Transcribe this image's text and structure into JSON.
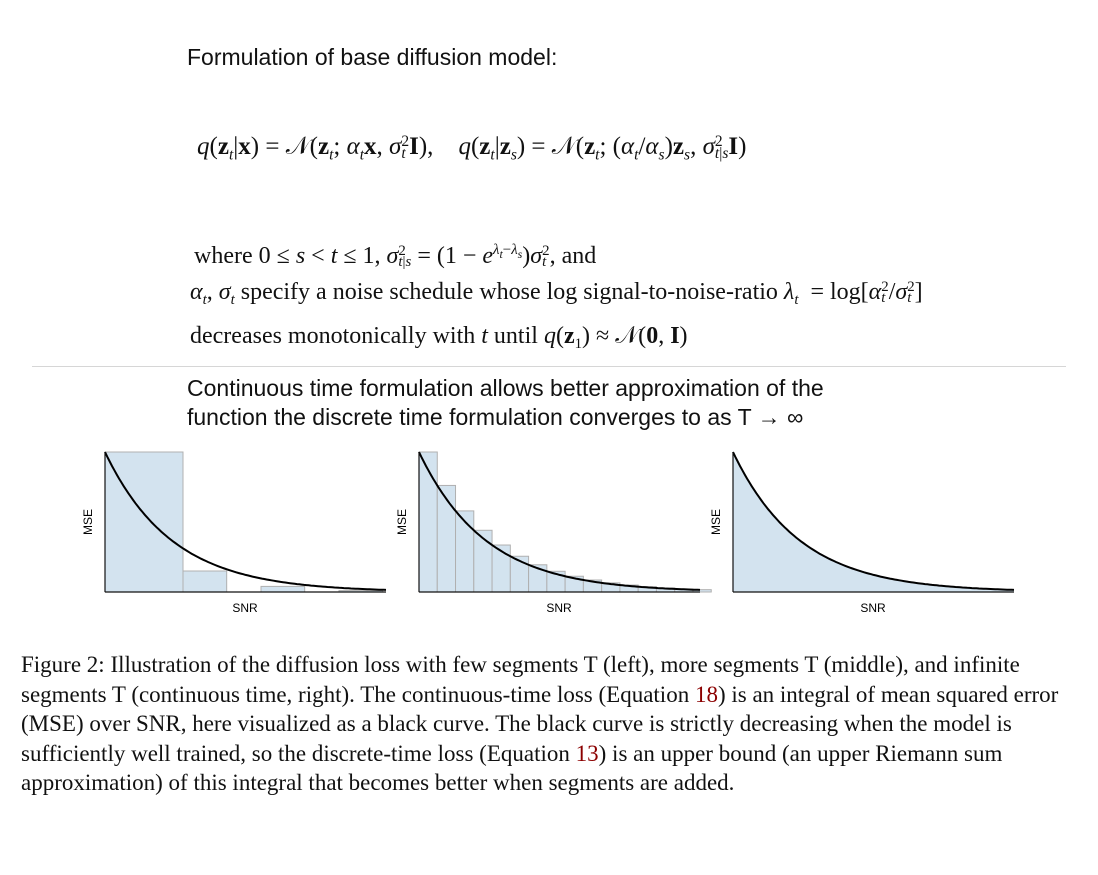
{
  "heading": "Formulation of base diffusion model:",
  "equation_main": {
    "left": "q(z_t|x) = N(z_t; α_t x, σ_t² I)",
    "right": "q(z_t|z_s) = N(z_t; (α_t/α_s) z_s, σ²_{t|s} I)"
  },
  "where_text": {
    "line1": "where 0 ≤ s < t ≤ 1, σ²_{t|s} = (1 − e^{λ_t−λ_s}) σ_t², and",
    "line2": "α_t, σ_t specify a noise schedule whose log signal-to-noise-ratio λ_t = log[α_t²/σ_t²]",
    "line3": "decreases monotonically with t until q(z_1) ≈ N(0, I)"
  },
  "continuous_text": {
    "line1": "Continuous time formulation allows better approximation of the",
    "line2": "function the discrete time formulation converges to as T → ∞"
  },
  "chart_data": [
    {
      "type": "area",
      "variant": "few segments",
      "xlabel": "SNR",
      "ylabel": "MSE",
      "curve": "exponential decay",
      "segments": 4,
      "bar_heights": [
        1.0,
        0.15,
        0.04,
        0.01
      ]
    },
    {
      "type": "area",
      "variant": "more segments",
      "xlabel": "SNR",
      "ylabel": "MSE",
      "curve": "exponential decay",
      "segments": 16
    },
    {
      "type": "area",
      "variant": "infinite segments",
      "xlabel": "SNR",
      "ylabel": "MSE",
      "curve": "exponential decay",
      "segments": null
    }
  ],
  "caption": {
    "text_a": "Figure 2: Illustration of the diffusion loss with few segments T (left), more segments T (middle), and infinite segments T (continuous time, right). The continuous-time loss (Equation ",
    "ref1": "18",
    "text_b": ") is an integral of mean squared error (MSE) over SNR, here visualized as a black curve. The black curve is strictly decreasing when the model is sufficiently well trained, so the discrete-time loss (Equation ",
    "ref2": "13",
    "text_c": ") is an upper bound (an upper Riemann sum approximation) of this integral that becomes better when segments are added."
  },
  "colors": {
    "fill": "#d3e3ef",
    "bar_stroke": "#b0b0b0",
    "curve": "#000000",
    "link": "#8b0000",
    "rule": "#d6d6d6"
  }
}
